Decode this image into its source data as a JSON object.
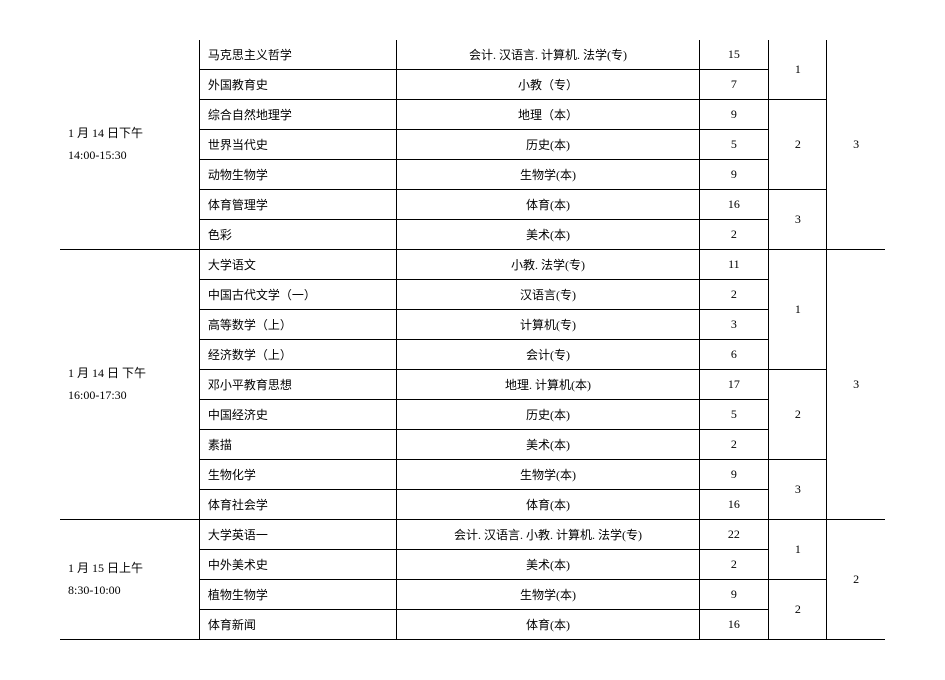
{
  "sessions": [
    {
      "time_label_1": "1 月 14 日下午",
      "time_label_2": "14:00-15:30",
      "total": "3",
      "groups": [
        {
          "group_num": "1",
          "rows": [
            {
              "subject": "马克思主义哲学",
              "major": "会计. 汉语言. 计算机. 法学(专)",
              "count": "15"
            },
            {
              "subject": "外国教育史",
              "major": "小教（专）",
              "count": "7"
            }
          ]
        },
        {
          "group_num": "2",
          "rows": [
            {
              "subject": "综合自然地理学",
              "major": "地理（本）",
              "count": "9"
            },
            {
              "subject": "世界当代史",
              "major": "历史(本)",
              "count": "5"
            },
            {
              "subject": "动物生物学",
              "major": "生物学(本)",
              "count": "9"
            }
          ]
        },
        {
          "group_num": "3",
          "rows": [
            {
              "subject": "体育管理学",
              "major": "体育(本)",
              "count": "16"
            },
            {
              "subject": "色彩",
              "major": "美术(本)",
              "count": "2"
            }
          ]
        }
      ]
    },
    {
      "time_label_1": "1 月 14 日 下午",
      "time_label_2": "16:00-17:30",
      "total": "3",
      "groups": [
        {
          "group_num": "1",
          "rows": [
            {
              "subject": "大学语文",
              "major": "小教. 法学(专)",
              "count": "11"
            },
            {
              "subject": "中国古代文学（一）",
              "major": "汉语言(专)",
              "count": "2"
            },
            {
              "subject": "高等数学（上）",
              "major": "计算机(专)",
              "count": "3"
            },
            {
              "subject": "经济数学（上）",
              "major": "会计(专)",
              "count": "6"
            }
          ]
        },
        {
          "group_num": "2",
          "rows": [
            {
              "subject": "邓小平教育思想",
              "major": "地理. 计算机(本)",
              "count": "17"
            },
            {
              "subject": "中国经济史",
              "major": "历史(本)",
              "count": "5"
            },
            {
              "subject": "素描",
              "major": "美术(本)",
              "count": "2"
            }
          ]
        },
        {
          "group_num": "3",
          "rows": [
            {
              "subject": "生物化学",
              "major": "生物学(本)",
              "count": "9"
            },
            {
              "subject": "体育社会学",
              "major": "体育(本)",
              "count": "16"
            }
          ]
        }
      ]
    },
    {
      "time_label_1": "1 月 15 日上午",
      "time_label_2": "8:30-10:00",
      "total": "2",
      "groups": [
        {
          "group_num": "1",
          "rows": [
            {
              "subject": "大学英语一",
              "major": "会计. 汉语言. 小教. 计算机. 法学(专)",
              "count": "22"
            },
            {
              "subject": "中外美术史",
              "major": "美术(本)",
              "count": "2"
            }
          ]
        },
        {
          "group_num": "2",
          "rows": [
            {
              "subject": "植物生物学",
              "major": "生物学(本)",
              "count": "9"
            },
            {
              "subject": "体育新闻",
              "major": "体育(本)",
              "count": "16"
            }
          ]
        }
      ]
    }
  ]
}
